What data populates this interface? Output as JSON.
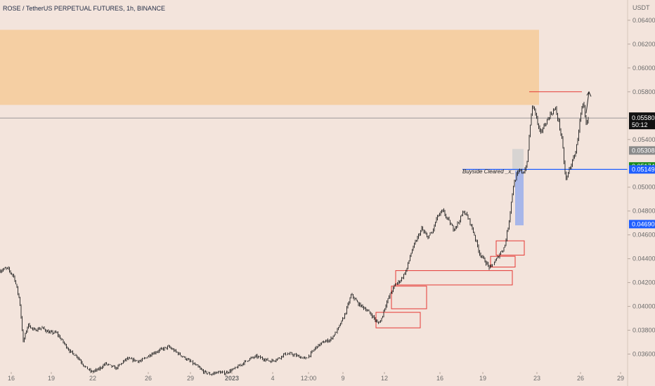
{
  "header": {
    "title": "ROSE / TetherUS PERPETUAL FUTURES, 1h, BINANCE"
  },
  "chart_data": {
    "type": "candlestick",
    "title": "ROSE / TetherUS PERPETUAL FUTURES, 1h, BINANCE",
    "y_unit": "USDT",
    "ylim": [
      0.0345,
      0.0657
    ],
    "y_ticks": [
      "0.06400",
      "0.06200",
      "0.06000",
      "0.05800",
      "0.05400",
      "0.05000",
      "0.04800",
      "0.04600",
      "0.04400",
      "0.04200",
      "0.04000",
      "0.03800",
      "0.03600"
    ],
    "x_ticks": [
      "16",
      "19",
      "22",
      "26",
      "29",
      "2023",
      "4",
      "12:00",
      "9",
      "12",
      "16",
      "19",
      "23",
      "26",
      "29"
    ],
    "price_path": [
      [
        0,
        0.043
      ],
      [
        10,
        0.0432
      ],
      [
        20,
        0.0425
      ],
      [
        28,
        0.0405
      ],
      [
        33,
        0.037
      ],
      [
        40,
        0.0385
      ],
      [
        48,
        0.038
      ],
      [
        60,
        0.0382
      ],
      [
        70,
        0.0378
      ],
      [
        80,
        0.0378
      ],
      [
        90,
        0.037
      ],
      [
        100,
        0.0362
      ],
      [
        110,
        0.0358
      ],
      [
        120,
        0.035
      ],
      [
        130,
        0.0345
      ],
      [
        140,
        0.0347
      ],
      [
        150,
        0.0352
      ],
      [
        165,
        0.0348
      ],
      [
        180,
        0.0356
      ],
      [
        200,
        0.0354
      ],
      [
        215,
        0.036
      ],
      [
        230,
        0.0364
      ],
      [
        240,
        0.0366
      ],
      [
        250,
        0.0362
      ],
      [
        260,
        0.0358
      ],
      [
        270,
        0.0354
      ],
      [
        280,
        0.035
      ],
      [
        290,
        0.0345
      ],
      [
        300,
        0.0343
      ],
      [
        310,
        0.0345
      ],
      [
        320,
        0.0344
      ],
      [
        335,
        0.0348
      ],
      [
        345,
        0.0352
      ],
      [
        355,
        0.0356
      ],
      [
        365,
        0.0358
      ],
      [
        375,
        0.0356
      ],
      [
        385,
        0.0354
      ],
      [
        395,
        0.0356
      ],
      [
        405,
        0.036
      ],
      [
        415,
        0.036
      ],
      [
        425,
        0.0358
      ],
      [
        435,
        0.0356
      ],
      [
        442,
        0.036
      ],
      [
        450,
        0.0366
      ],
      [
        460,
        0.037
      ],
      [
        470,
        0.0372
      ],
      [
        480,
        0.038
      ],
      [
        490,
        0.0392
      ],
      [
        500,
        0.041
      ],
      [
        510,
        0.0402
      ],
      [
        520,
        0.0398
      ],
      [
        530,
        0.0392
      ],
      [
        537,
        0.0386
      ],
      [
        542,
        0.0388
      ],
      [
        548,
        0.04
      ],
      [
        555,
        0.041
      ],
      [
        562,
        0.0418
      ],
      [
        570,
        0.0422
      ],
      [
        578,
        0.043
      ],
      [
        585,
        0.0445
      ],
      [
        592,
        0.0455
      ],
      [
        600,
        0.0465
      ],
      [
        608,
        0.0458
      ],
      [
        615,
        0.0462
      ],
      [
        622,
        0.0475
      ],
      [
        630,
        0.048
      ],
      [
        638,
        0.0472
      ],
      [
        645,
        0.0465
      ],
      [
        652,
        0.047
      ],
      [
        660,
        0.048
      ],
      [
        668,
        0.0472
      ],
      [
        675,
        0.046
      ],
      [
        682,
        0.0445
      ],
      [
        690,
        0.0438
      ],
      [
        697,
        0.0432
      ],
      [
        705,
        0.0438
      ],
      [
        712,
        0.0445
      ],
      [
        718,
        0.045
      ],
      [
        724,
        0.047
      ],
      [
        730,
        0.05
      ],
      [
        735,
        0.051
      ],
      [
        740,
        0.0514
      ],
      [
        745,
        0.0512
      ],
      [
        750,
        0.052
      ],
      [
        754,
        0.055
      ],
      [
        758,
        0.057
      ],
      [
        762,
        0.0562
      ],
      [
        768,
        0.0545
      ],
      [
        775,
        0.0552
      ],
      [
        782,
        0.056
      ],
      [
        790,
        0.0566
      ],
      [
        795,
        0.0555
      ],
      [
        800,
        0.0538
      ],
      [
        805,
        0.0505
      ],
      [
        810,
        0.0515
      ],
      [
        815,
        0.0522
      ],
      [
        820,
        0.0532
      ],
      [
        826,
        0.056
      ],
      [
        830,
        0.057
      ],
      [
        834,
        0.0552
      ],
      [
        838,
        0.0558
      ]
    ],
    "price_levels": {
      "current": 0.0558,
      "level_a": 0.05308,
      "level_b": 0.05174,
      "level_c": 0.05149,
      "level_d": 0.0469
    },
    "tags": {
      "current_price": "0.05580",
      "countdown": "50:12",
      "level_a": "0.05308",
      "level_b": "0.05174",
      "level_c": "0.05149",
      "level_d": "0.04690"
    },
    "zones": {
      "supply_zone": {
        "price_top": 0.0632,
        "price_bottom": 0.0569
      },
      "bullish_rectangles": [
        {
          "price_top": 0.0395,
          "price_bottom": 0.0382
        },
        {
          "price_top": 0.0417,
          "price_bottom": 0.0398
        },
        {
          "price_top": 0.043,
          "price_bottom": 0.0418
        },
        {
          "price_top": 0.0442,
          "price_bottom": 0.0433
        },
        {
          "price_top": 0.0455,
          "price_bottom": 0.0443
        }
      ],
      "blue_box": {
        "price_top": 0.0514,
        "price_bottom": 0.0468
      }
    },
    "annotations": {
      "buyside_label": "Buyside Cleared _x_",
      "buyside_price": 0.05149,
      "high_line_price": 0.058
    },
    "colors": {
      "background": "#f3e4dc",
      "candle": "#1a1a1a",
      "supply_zone": "#f5cfa3",
      "red_rect": "#e53935",
      "blue_level": "#1e5eff",
      "green_tag": "#1b8a1b",
      "grey_tag": "#8a8a8a",
      "black_tag": "#111111"
    }
  }
}
